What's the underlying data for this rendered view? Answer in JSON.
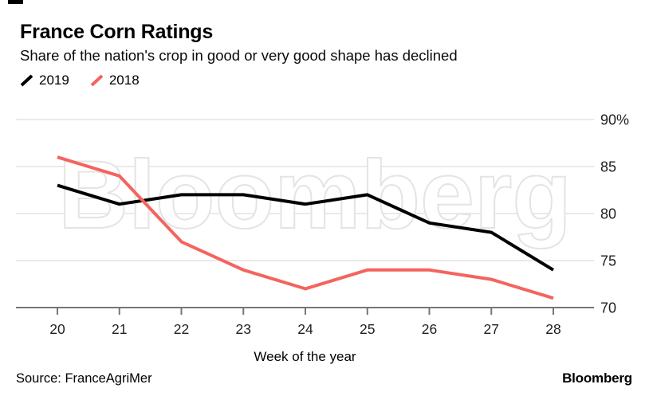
{
  "header": {
    "title": "France Corn Ratings",
    "subtitle": "Share of the nation's crop in good or very good shape has declined"
  },
  "legend": [
    {
      "label": "2019",
      "color": "#000000"
    },
    {
      "label": "2018",
      "color": "#f4645e"
    }
  ],
  "watermark": "Bloomberg",
  "chart_data": {
    "type": "line",
    "x": [
      20,
      21,
      22,
      23,
      24,
      25,
      26,
      27,
      28
    ],
    "series": [
      {
        "name": "2019",
        "color": "#000000",
        "values": [
          83,
          81,
          82,
          82,
          81,
          82,
          79,
          78,
          74
        ]
      },
      {
        "name": "2018",
        "color": "#f4645e",
        "values": [
          86,
          84,
          77,
          74,
          72,
          74,
          74,
          73,
          71
        ]
      }
    ],
    "title": "France Corn Ratings",
    "xlabel": "Week of the year",
    "ylabel": "",
    "ylim": [
      70,
      90
    ],
    "yticks": [
      70,
      75,
      80,
      85,
      90
    ],
    "ytick_labels": [
      "70",
      "75",
      "80",
      "85",
      "90%"
    ],
    "ytick_side": "right",
    "grid": "horizontal",
    "legend_position": "top-left",
    "colors": {
      "gridline": "#e4e4e4",
      "axis": "#747678",
      "tick_label": "#1f1f1f",
      "watermark_outline": "#e4e4e4"
    }
  },
  "footer": {
    "source": "Source: FranceAgriMer",
    "brand": "Bloomberg"
  }
}
